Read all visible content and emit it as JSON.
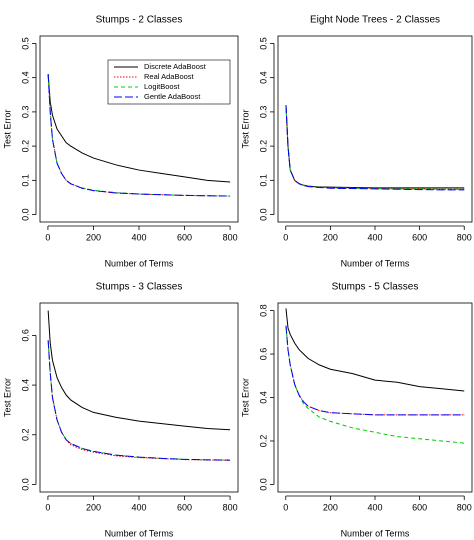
{
  "chart_data": [
    {
      "type": "line",
      "title": "Stumps - 2 Classes",
      "xlabel": "Number of Terms",
      "ylabel": "Test Error",
      "x": [
        1,
        10,
        20,
        40,
        60,
        80,
        100,
        150,
        200,
        300,
        400,
        500,
        600,
        700,
        800
      ],
      "xlim": [
        0,
        800
      ],
      "xticks": [
        0,
        200,
        400,
        600,
        800
      ],
      "ylim": [
        0,
        0.5
      ],
      "yticks": [
        {
          "value": 0,
          "label": "0.0"
        },
        0.1,
        0.2,
        0.3,
        0.4,
        0.5
      ],
      "legend": "upper right",
      "series": [
        {
          "name": "Discrete AdaBoost",
          "color": "#000000",
          "dash": "solid",
          "values": [
            0.41,
            0.33,
            0.29,
            0.25,
            0.23,
            0.21,
            0.2,
            0.18,
            0.165,
            0.145,
            0.13,
            0.12,
            0.11,
            0.1,
            0.095
          ]
        },
        {
          "name": "Real AdaBoost",
          "color": "#ff0000",
          "dash": "dotted",
          "values": [
            0.41,
            0.3,
            0.22,
            0.15,
            0.12,
            0.1,
            0.09,
            0.077,
            0.07,
            0.063,
            0.06,
            0.058,
            0.056,
            0.055,
            0.054
          ]
        },
        {
          "name": "LogitBoost",
          "color": "#00cc00",
          "dash": "dashed",
          "values": [
            0.41,
            0.3,
            0.22,
            0.15,
            0.12,
            0.1,
            0.09,
            0.078,
            0.071,
            0.064,
            0.06,
            0.058,
            0.056,
            0.055,
            0.054
          ]
        },
        {
          "name": "Gentle AdaBoost",
          "color": "#0000ff",
          "dash": "longdash",
          "values": [
            0.41,
            0.3,
            0.22,
            0.15,
            0.12,
            0.1,
            0.09,
            0.077,
            0.07,
            0.063,
            0.06,
            0.058,
            0.056,
            0.055,
            0.054
          ]
        }
      ]
    },
    {
      "type": "line",
      "title": "Eight Node Trees - 2 Classes",
      "xlabel": "Number of Terms",
      "ylabel": "Test Error",
      "x": [
        1,
        10,
        20,
        40,
        60,
        80,
        100,
        150,
        200,
        300,
        400,
        500,
        600,
        700,
        800
      ],
      "xlim": [
        0,
        800
      ],
      "xticks": [
        0,
        200,
        400,
        600,
        800
      ],
      "ylim": [
        0,
        0.5
      ],
      "yticks": [
        {
          "value": 0,
          "label": "0.0"
        },
        0.1,
        0.2,
        0.3,
        0.4,
        0.5
      ],
      "series": [
        {
          "name": "Discrete AdaBoost",
          "color": "#000000",
          "dash": "solid",
          "values": [
            0.32,
            0.2,
            0.13,
            0.1,
            0.09,
            0.086,
            0.083,
            0.081,
            0.08,
            0.079,
            0.078,
            0.078,
            0.078,
            0.078,
            0.078
          ]
        },
        {
          "name": "Real AdaBoost",
          "color": "#ff0000",
          "dash": "dotted",
          "values": [
            0.32,
            0.2,
            0.13,
            0.1,
            0.09,
            0.085,
            0.082,
            0.08,
            0.078,
            0.077,
            0.076,
            0.075,
            0.075,
            0.074,
            0.074
          ]
        },
        {
          "name": "LogitBoost",
          "color": "#00cc00",
          "dash": "dashed",
          "values": [
            0.32,
            0.2,
            0.13,
            0.1,
            0.09,
            0.085,
            0.082,
            0.08,
            0.078,
            0.077,
            0.076,
            0.075,
            0.075,
            0.074,
            0.074
          ]
        },
        {
          "name": "Gentle AdaBoost",
          "color": "#0000ff",
          "dash": "longdash",
          "values": [
            0.32,
            0.2,
            0.13,
            0.1,
            0.09,
            0.085,
            0.082,
            0.079,
            0.077,
            0.076,
            0.075,
            0.074,
            0.073,
            0.072,
            0.072
          ]
        }
      ]
    },
    {
      "type": "line",
      "title": "Stumps - 3 Classes",
      "xlabel": "Number of Terms",
      "ylabel": "Test Error",
      "x": [
        1,
        10,
        20,
        40,
        60,
        80,
        100,
        150,
        200,
        300,
        400,
        500,
        600,
        700,
        800
      ],
      "xlim": [
        0,
        800
      ],
      "xticks": [
        0,
        200,
        400,
        600,
        800
      ],
      "ylim": [
        0,
        0.7
      ],
      "yticks": [
        {
          "value": 0,
          "label": "0.0"
        },
        0.2,
        0.4,
        0.6
      ],
      "series": [
        {
          "name": "Discrete AdaBoost",
          "color": "#000000",
          "dash": "solid",
          "values": [
            0.7,
            0.57,
            0.5,
            0.43,
            0.39,
            0.36,
            0.34,
            0.31,
            0.29,
            0.27,
            0.255,
            0.245,
            0.235,
            0.225,
            0.22
          ]
        },
        {
          "name": "Real AdaBoost",
          "color": "#ff0000",
          "dash": "dotted",
          "values": [
            0.58,
            0.45,
            0.35,
            0.26,
            0.21,
            0.18,
            0.16,
            0.14,
            0.13,
            0.115,
            0.108,
            0.104,
            0.1,
            0.098,
            0.097
          ]
        },
        {
          "name": "LogitBoost",
          "color": "#00cc00",
          "dash": "dashed",
          "values": [
            0.58,
            0.45,
            0.35,
            0.26,
            0.21,
            0.18,
            0.165,
            0.145,
            0.133,
            0.118,
            0.11,
            0.105,
            0.101,
            0.099,
            0.098
          ]
        },
        {
          "name": "Gentle AdaBoost",
          "color": "#0000ff",
          "dash": "longdash",
          "values": [
            0.58,
            0.45,
            0.35,
            0.26,
            0.21,
            0.18,
            0.165,
            0.145,
            0.133,
            0.118,
            0.11,
            0.105,
            0.101,
            0.099,
            0.098
          ]
        }
      ]
    },
    {
      "type": "line",
      "title": "Stumps - 5 Classes",
      "xlabel": "Number of Terms",
      "ylabel": "Test Error",
      "x": [
        1,
        10,
        20,
        40,
        60,
        80,
        100,
        150,
        200,
        300,
        400,
        500,
        600,
        700,
        800
      ],
      "xlim": [
        0,
        800
      ],
      "xticks": [
        0,
        200,
        400,
        600,
        800
      ],
      "ylim": [
        0,
        0.8
      ],
      "yticks": [
        {
          "value": 0,
          "label": "0.0"
        },
        0.2,
        0.4,
        0.6,
        0.8
      ],
      "series": [
        {
          "name": "Discrete AdaBoost",
          "color": "#000000",
          "dash": "solid",
          "values": [
            0.81,
            0.72,
            0.69,
            0.65,
            0.62,
            0.6,
            0.58,
            0.55,
            0.53,
            0.51,
            0.48,
            0.47,
            0.45,
            0.44,
            0.43
          ]
        },
        {
          "name": "Real AdaBoost",
          "color": "#ff0000",
          "dash": "dotted",
          "values": [
            0.73,
            0.62,
            0.55,
            0.46,
            0.41,
            0.38,
            0.36,
            0.34,
            0.33,
            0.325,
            0.32,
            0.32,
            0.32,
            0.32,
            0.32
          ]
        },
        {
          "name": "LogitBoost",
          "color": "#00cc00",
          "dash": "dashed",
          "values": [
            0.73,
            0.62,
            0.55,
            0.46,
            0.41,
            0.37,
            0.35,
            0.31,
            0.29,
            0.26,
            0.24,
            0.22,
            0.21,
            0.2,
            0.19
          ]
        },
        {
          "name": "Gentle AdaBoost",
          "color": "#0000ff",
          "dash": "longdash",
          "values": [
            0.73,
            0.62,
            0.55,
            0.46,
            0.41,
            0.38,
            0.36,
            0.34,
            0.33,
            0.325,
            0.32,
            0.32,
            0.32,
            0.32,
            0.32
          ]
        }
      ]
    }
  ]
}
